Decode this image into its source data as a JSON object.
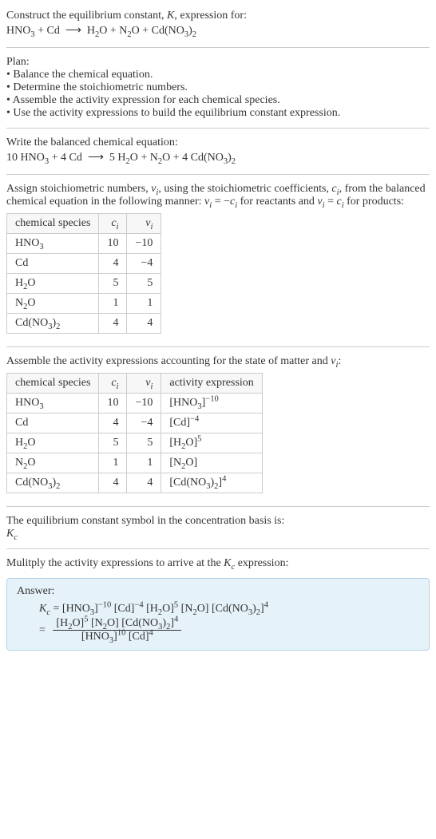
{
  "header": {
    "title": "Construct the equilibrium constant, <i>K</i>, expression for:",
    "equation": "HNO<sub>3</sub> + Cd &nbsp;⟶&nbsp; H<sub>2</sub>O + N<sub>2</sub>O + Cd(NO<sub>3</sub>)<sub>2</sub>"
  },
  "plan": {
    "title": "Plan:",
    "items": [
      "• Balance the chemical equation.",
      "• Determine the stoichiometric numbers.",
      "• Assemble the activity expression for each chemical species.",
      "• Use the activity expressions to build the equilibrium constant expression."
    ]
  },
  "balanced": {
    "title": "Write the balanced chemical equation:",
    "equation": "10 HNO<sub>3</sub> + 4 Cd &nbsp;⟶&nbsp; 5 H<sub>2</sub>O + N<sub>2</sub>O + 4 Cd(NO<sub>3</sub>)<sub>2</sub>"
  },
  "stoich": {
    "intro": "Assign stoichiometric numbers, <i>ν<sub>i</sub></i>, using the stoichiometric coefficients, <i>c<sub>i</sub></i>, from the balanced chemical equation in the following manner: <i>ν<sub>i</sub></i> = −<i>c<sub>i</sub></i> for reactants and <i>ν<sub>i</sub></i> = <i>c<sub>i</sub></i> for products:",
    "columns": [
      "chemical species",
      "<i>c<sub>i</sub></i>",
      "<i>ν<sub>i</sub></i>"
    ],
    "rows": [
      {
        "species": "HNO<sub>3</sub>",
        "c": "10",
        "v": "−10"
      },
      {
        "species": "Cd",
        "c": "4",
        "v": "−4"
      },
      {
        "species": "H<sub>2</sub>O",
        "c": "5",
        "v": "5"
      },
      {
        "species": "N<sub>2</sub>O",
        "c": "1",
        "v": "1"
      },
      {
        "species": "Cd(NO<sub>3</sub>)<sub>2</sub>",
        "c": "4",
        "v": "4"
      }
    ]
  },
  "activity": {
    "intro": "Assemble the activity expressions accounting for the state of matter and <i>ν<sub>i</sub></i>:",
    "columns": [
      "chemical species",
      "<i>c<sub>i</sub></i>",
      "<i>ν<sub>i</sub></i>",
      "activity expression"
    ],
    "rows": [
      {
        "species": "HNO<sub>3</sub>",
        "c": "10",
        "v": "−10",
        "expr": "[HNO<sub>3</sub>]<sup>−10</sup>"
      },
      {
        "species": "Cd",
        "c": "4",
        "v": "−4",
        "expr": "[Cd]<sup>−4</sup>"
      },
      {
        "species": "H<sub>2</sub>O",
        "c": "5",
        "v": "5",
        "expr": "[H<sub>2</sub>O]<sup>5</sup>"
      },
      {
        "species": "N<sub>2</sub>O",
        "c": "1",
        "v": "1",
        "expr": "[N<sub>2</sub>O]"
      },
      {
        "species": "Cd(NO<sub>3</sub>)<sub>2</sub>",
        "c": "4",
        "v": "4",
        "expr": "[Cd(NO<sub>3</sub>)<sub>2</sub>]<sup>4</sup>"
      }
    ]
  },
  "symbol": {
    "line1": "The equilibrium constant symbol in the concentration basis is:",
    "line2": "<i>K<sub>c</sub></i>"
  },
  "multiply": "Mulitply the activity expressions to arrive at the <i>K<sub>c</sub></i> expression:",
  "answer": {
    "label": "Answer:",
    "line1": "<i>K<sub>c</sub></i> = [HNO<sub>3</sub>]<sup>−10</sup> [Cd]<sup>−4</sup> [H<sub>2</sub>O]<sup>5</sup> [N<sub>2</sub>O] [Cd(NO<sub>3</sub>)<sub>2</sub>]<sup>4</sup>",
    "numerator": "[H<sub>2</sub>O]<sup>5</sup> [N<sub>2</sub>O] [Cd(NO<sub>3</sub>)<sub>2</sub>]<sup>4</sup>",
    "denominator": "[HNO<sub>3</sub>]<sup>10</sup> [Cd]<sup>4</sup>"
  }
}
